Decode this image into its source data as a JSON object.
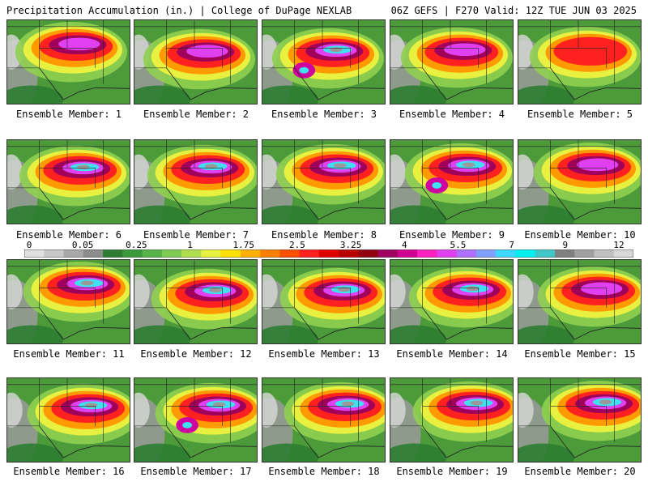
{
  "header": {
    "title": "Precipitation Accumulation (in.) | College of DuPage NEXLAB",
    "run_info": "06Z GEFS | F270 Valid: 12Z TUE JUN 03 2025"
  },
  "members": [
    {
      "label": "Ensemble Member: 1",
      "intensity": 2
    },
    {
      "label": "Ensemble Member: 2",
      "intensity": 2
    },
    {
      "label": "Ensemble Member: 3",
      "intensity": 4
    },
    {
      "label": "Ensemble Member: 4",
      "intensity": 2
    },
    {
      "label": "Ensemble Member: 5",
      "intensity": 1
    },
    {
      "label": "Ensemble Member: 6",
      "intensity": 3
    },
    {
      "label": "Ensemble Member: 7",
      "intensity": 3
    },
    {
      "label": "Ensemble Member: 8",
      "intensity": 3
    },
    {
      "label": "Ensemble Member: 9",
      "intensity": 4
    },
    {
      "label": "Ensemble Member: 10",
      "intensity": 2
    },
    {
      "label": "Ensemble Member: 11",
      "intensity": 3
    },
    {
      "label": "Ensemble Member: 12",
      "intensity": 3
    },
    {
      "label": "Ensemble Member: 13",
      "intensity": 3
    },
    {
      "label": "Ensemble Member: 14",
      "intensity": 3
    },
    {
      "label": "Ensemble Member: 15",
      "intensity": 2
    },
    {
      "label": "Ensemble Member: 16",
      "intensity": 3
    },
    {
      "label": "Ensemble Member: 17",
      "intensity": 4
    },
    {
      "label": "Ensemble Member: 18",
      "intensity": 3
    },
    {
      "label": "Ensemble Member: 19",
      "intensity": 3
    },
    {
      "label": "Ensemble Member: 20",
      "intensity": 3
    }
  ],
  "colorbar": {
    "labels": [
      "0",
      "0.05",
      "0.25",
      "1",
      "1.75",
      "2.5",
      "3.25",
      "4",
      "5.5",
      "7",
      "9",
      "12"
    ],
    "colors": [
      "#e0e0e0",
      "#c8c8c8",
      "#a8a8a8",
      "#8c8c8c",
      "#2e7d32",
      "#3c9a3c",
      "#58b34a",
      "#7fcc55",
      "#b0e050",
      "#e8f040",
      "#ffe000",
      "#ffb000",
      "#ff8000",
      "#ff5000",
      "#ff2020",
      "#e00000",
      "#b80000",
      "#900010",
      "#a00060",
      "#d00090",
      "#ff20c0",
      "#e040f0",
      "#b070ff",
      "#7fa0ff",
      "#40d8ff",
      "#00f0f0",
      "#40c8c8",
      "#808080",
      "#a0a0a0",
      "#c0c0c0",
      "#d8d8d8"
    ]
  }
}
